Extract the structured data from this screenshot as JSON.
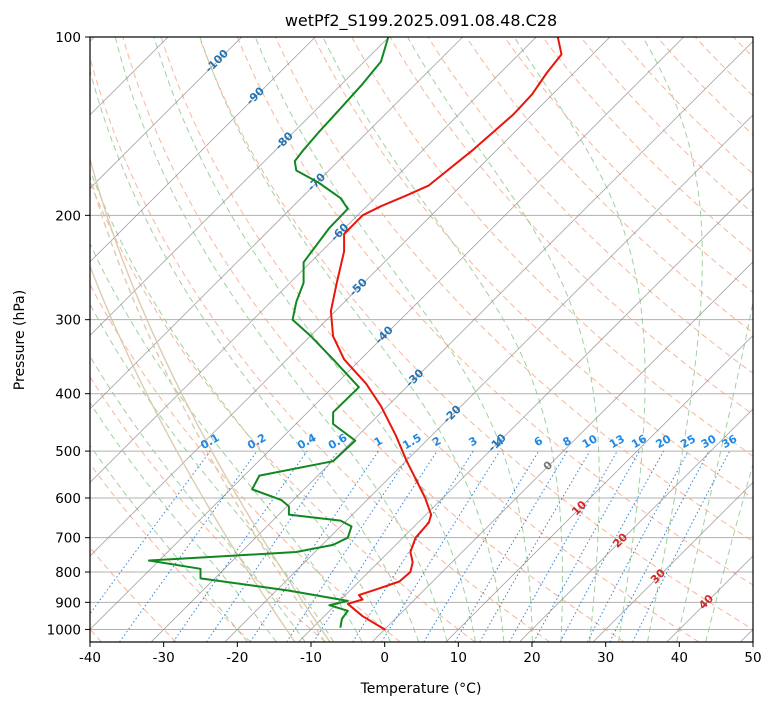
{
  "chart_data": {
    "type": "line",
    "title": "wetPf2_S199.2025.091.08.48.C28",
    "xlabel": "Temperature (°C)",
    "ylabel": "Pressure (hPa)",
    "xlim": [
      -40,
      50
    ],
    "ylim": [
      1050,
      100
    ],
    "y_scale": "log",
    "x_ticks": [
      -40,
      -30,
      -20,
      -10,
      0,
      10,
      20,
      30,
      40,
      50
    ],
    "y_ticks": [
      100,
      200,
      300,
      400,
      500,
      600,
      700,
      800,
      900,
      1000
    ],
    "grid": true,
    "series": [
      {
        "role": "temperature",
        "color": "#e8160c",
        "points": [
          [
            0,
            1000
          ],
          [
            -3,
            950
          ],
          [
            -5,
            905
          ],
          [
            -3,
            890
          ],
          [
            -3.5,
            875
          ],
          [
            -1,
            855
          ],
          [
            2,
            830
          ],
          [
            3.5,
            800
          ],
          [
            3.8,
            770
          ],
          [
            3.5,
            740
          ],
          [
            4.2,
            700
          ],
          [
            6,
            660
          ],
          [
            6.3,
            640
          ],
          [
            5.5,
            600
          ],
          [
            3,
            520
          ],
          [
            1.5,
            470
          ],
          [
            -0.5,
            420
          ],
          [
            -2.5,
            385
          ],
          [
            -5.5,
            350
          ],
          [
            -7,
            320
          ],
          [
            -7.3,
            290
          ],
          [
            -6.5,
            260
          ],
          [
            -5.5,
            230
          ],
          [
            -5.5,
            215
          ],
          [
            -3,
            200
          ],
          [
            -0.5,
            193
          ],
          [
            3,
            185
          ],
          [
            6,
            178
          ],
          [
            8,
            170
          ],
          [
            12,
            155
          ],
          [
            17.5,
            135
          ],
          [
            20,
            125
          ],
          [
            22,
            115
          ],
          [
            24,
            107
          ],
          [
            23.5,
            100
          ]
        ]
      },
      {
        "role": "dewpoint",
        "color": "#11881f",
        "points": [
          [
            -6,
            990
          ],
          [
            -5.8,
            960
          ],
          [
            -5,
            930
          ],
          [
            -7.5,
            910
          ],
          [
            -5,
            895
          ],
          [
            -13,
            860
          ],
          [
            -25,
            820
          ],
          [
            -25,
            790
          ],
          [
            -32,
            765
          ],
          [
            -24,
            755
          ],
          [
            -12,
            740
          ],
          [
            -7,
            720
          ],
          [
            -5,
            700
          ],
          [
            -4.5,
            670
          ],
          [
            -6,
            655
          ],
          [
            -13,
            640
          ],
          [
            -13,
            620
          ],
          [
            -14,
            605
          ],
          [
            -18,
            580
          ],
          [
            -17,
            550
          ],
          [
            -7,
            520
          ],
          [
            -4,
            480
          ],
          [
            -7,
            450
          ],
          [
            -7,
            430
          ],
          [
            -3.5,
            390
          ],
          [
            -7,
            350
          ],
          [
            -10,
            320
          ],
          [
            -12.5,
            300
          ],
          [
            -12,
            280
          ],
          [
            -11,
            260
          ],
          [
            -11,
            240
          ],
          [
            -7.5,
            210
          ],
          [
            -5,
            195
          ],
          [
            -6,
            187
          ],
          [
            -9,
            176
          ],
          [
            -12,
            168
          ],
          [
            -12.2,
            162
          ],
          [
            -11,
            155
          ],
          [
            -9,
            145
          ],
          [
            -6,
            132
          ],
          [
            -3,
            120
          ],
          [
            -0.5,
            110
          ],
          [
            0.5,
            100
          ]
        ]
      }
    ],
    "isotherm_labels": [
      "-100",
      "-90",
      "-80",
      "-70",
      "-60",
      "-50",
      "-40",
      "-30",
      "-20",
      "-10",
      "0",
      "10",
      "20",
      "30",
      "40"
    ],
    "mixing_ratio_labels": [
      "0.1",
      "0.2",
      "0.4",
      "0.6",
      "1",
      "1.5",
      "2",
      "3",
      "4",
      "6",
      "8",
      "10",
      "13",
      "16",
      "20",
      "25",
      "30",
      "36"
    ],
    "colors": {
      "grid": "#b0b0b0",
      "isotherm": "#8a8a8a",
      "dry_adiabat": "#f4a582",
      "moist_adiabat": "#8fc98f",
      "mixing_ratio": "#1f77d4",
      "isotherm_label_cold": "#2474b2",
      "isotherm_label_zero": "#777777",
      "isotherm_label_warm": "#d62728",
      "mixing_label": "#1e88e5",
      "frame": "#000000",
      "outer_curve": "#d9c6a8"
    }
  }
}
